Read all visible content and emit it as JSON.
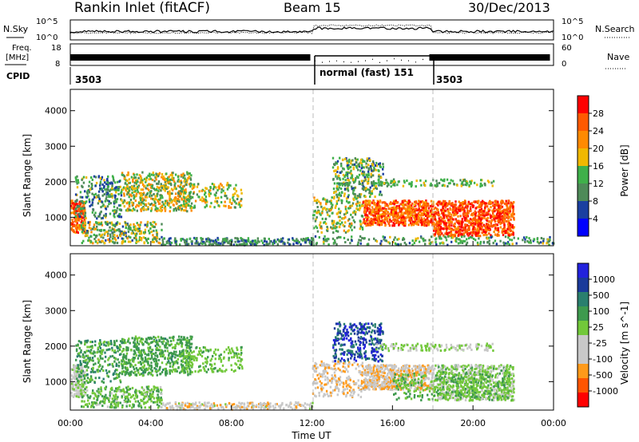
{
  "header": {
    "station": "Rankin Inlet (fitACF)",
    "beam": "Beam 15",
    "date": "30/Dec/2013"
  },
  "top_panels": {
    "nsky_label": "N.Sky",
    "nsky_ticks": [
      "10^5",
      "10^0"
    ],
    "nsearch_label": "N.Search",
    "nsearch_ticks": [
      "10^5",
      "10^0"
    ],
    "freq_label_1": "Freq.",
    "freq_label_2": "[MHz]",
    "freq_ticks": [
      "18",
      "8"
    ],
    "nave_label": "Nave",
    "nave_ticks": [
      "60",
      "0"
    ],
    "cpid_label": "CPID",
    "cpid_segments": [
      "3503",
      "normal (fast) 151",
      "3503"
    ]
  },
  "colors": {
    "power": [
      "#0000ff",
      "#1a3fa0",
      "#4e8a58",
      "#3fb04a",
      "#f0b800",
      "#ff8a00",
      "#ff5a00",
      "#ff0000"
    ],
    "velocity": [
      "#ff0000",
      "#ff5500",
      "#ff9a1a",
      "#c8c8c8",
      "#c8c8c8",
      "#72c83a",
      "#3e9a4e",
      "#2a7f6e",
      "#1a3a9a",
      "#2222dd"
    ]
  },
  "chart_data": [
    {
      "type": "heatmap",
      "quantity": "Power",
      "xlabel": "",
      "ylabel": "Slant Range [km]",
      "xlim_hours": [
        0,
        24
      ],
      "ylim_km": [
        200,
        4600
      ],
      "yticks": [
        "4000",
        "3000",
        "2000",
        "1000"
      ],
      "colorbar_label": "Power [dB]",
      "colorbar_ticks": [
        "28",
        "24",
        "20",
        "16",
        "12",
        "8",
        "4"
      ],
      "colorbar_range": [
        0,
        30
      ],
      "scatter_regions": [
        {
          "t": [
            0.0,
            0.7
          ],
          "r": [
            600,
            1500
          ],
          "v": [
            18,
            30
          ],
          "n": 180
        },
        {
          "t": [
            0.2,
            2.5
          ],
          "r": [
            1000,
            2200
          ],
          "v": [
            4,
            16
          ],
          "n": 260
        },
        {
          "t": [
            2.5,
            6.0
          ],
          "r": [
            1200,
            2300
          ],
          "v": [
            8,
            22
          ],
          "n": 520
        },
        {
          "t": [
            5.5,
            8.5
          ],
          "r": [
            1300,
            2000
          ],
          "v": [
            10,
            20
          ],
          "n": 160
        },
        {
          "t": [
            0.5,
            4.5
          ],
          "r": [
            300,
            900
          ],
          "v": [
            6,
            20
          ],
          "n": 300
        },
        {
          "t": [
            4.5,
            12.0
          ],
          "r": [
            250,
            450
          ],
          "v": [
            4,
            14
          ],
          "n": 260
        },
        {
          "t": [
            12.0,
            14.5
          ],
          "r": [
            600,
            1600
          ],
          "v": [
            8,
            20
          ],
          "n": 200
        },
        {
          "t": [
            13.0,
            15.5
          ],
          "r": [
            1600,
            2700
          ],
          "v": [
            6,
            18
          ],
          "n": 320
        },
        {
          "t": [
            14.5,
            18.0
          ],
          "r": [
            800,
            1500
          ],
          "v": [
            18,
            30
          ],
          "n": 640
        },
        {
          "t": [
            18.0,
            22.0
          ],
          "r": [
            500,
            1500
          ],
          "v": [
            20,
            30
          ],
          "n": 900
        },
        {
          "t": [
            15.0,
            21.0
          ],
          "r": [
            1900,
            2100
          ],
          "v": [
            10,
            16
          ],
          "n": 120
        },
        {
          "t": [
            12.0,
            24.0
          ],
          "r": [
            250,
            500
          ],
          "v": [
            6,
            16
          ],
          "n": 220
        }
      ]
    },
    {
      "type": "heatmap",
      "quantity": "Velocity",
      "xlabel": "Time UT",
      "ylabel": "Slant Range [km]",
      "xlim_hours": [
        0,
        24
      ],
      "ylim_km": [
        200,
        4600
      ],
      "xticks": [
        "00:00",
        "04:00",
        "08:00",
        "12:00",
        "16:00",
        "20:00",
        "00:00"
      ],
      "yticks": [
        "4000",
        "3000",
        "2000",
        "1000"
      ],
      "colorbar_label": "Velocity [m s^-1]",
      "colorbar_ticks": [
        "1000",
        "500",
        "100",
        "25",
        "-25",
        "-100",
        "-500",
        "-1000"
      ],
      "colorbar_range": [
        -1200,
        1200
      ],
      "scatter_regions": [
        {
          "t": [
            0.0,
            0.7
          ],
          "r": [
            600,
            1500
          ],
          "v": [
            -300,
            100
          ],
          "n": 160
        },
        {
          "t": [
            0.2,
            2.5
          ],
          "r": [
            1000,
            2200
          ],
          "v": [
            100,
            600
          ],
          "n": 260
        },
        {
          "t": [
            2.5,
            6.0
          ],
          "r": [
            1200,
            2300
          ],
          "v": [
            100,
            500
          ],
          "n": 520
        },
        {
          "t": [
            5.5,
            8.5
          ],
          "r": [
            1300,
            2000
          ],
          "v": [
            50,
            300
          ],
          "n": 160
        },
        {
          "t": [
            0.5,
            4.5
          ],
          "r": [
            300,
            900
          ],
          "v": [
            -50,
            400
          ],
          "n": 300
        },
        {
          "t": [
            4.5,
            12.0
          ],
          "r": [
            250,
            450
          ],
          "v": [
            -600,
            50
          ],
          "n": 220
        },
        {
          "t": [
            12.0,
            14.5
          ],
          "r": [
            600,
            1600
          ],
          "v": [
            -700,
            -50
          ],
          "n": 220
        },
        {
          "t": [
            13.0,
            15.5
          ],
          "r": [
            1600,
            2700
          ],
          "v": [
            500,
            1200
          ],
          "n": 320
        },
        {
          "t": [
            14.5,
            18.0
          ],
          "r": [
            800,
            1500
          ],
          "v": [
            -700,
            0
          ],
          "n": 640
        },
        {
          "t": [
            18.0,
            22.0
          ],
          "r": [
            500,
            1500
          ],
          "v": [
            -200,
            300
          ],
          "n": 760
        },
        {
          "t": [
            15.0,
            21.0
          ],
          "r": [
            1900,
            2100
          ],
          "v": [
            -20,
            20
          ],
          "n": 140
        },
        {
          "t": [
            16.0,
            22.0
          ],
          "r": [
            500,
            1300
          ],
          "v": [
            50,
            400
          ],
          "n": 300
        }
      ]
    }
  ]
}
